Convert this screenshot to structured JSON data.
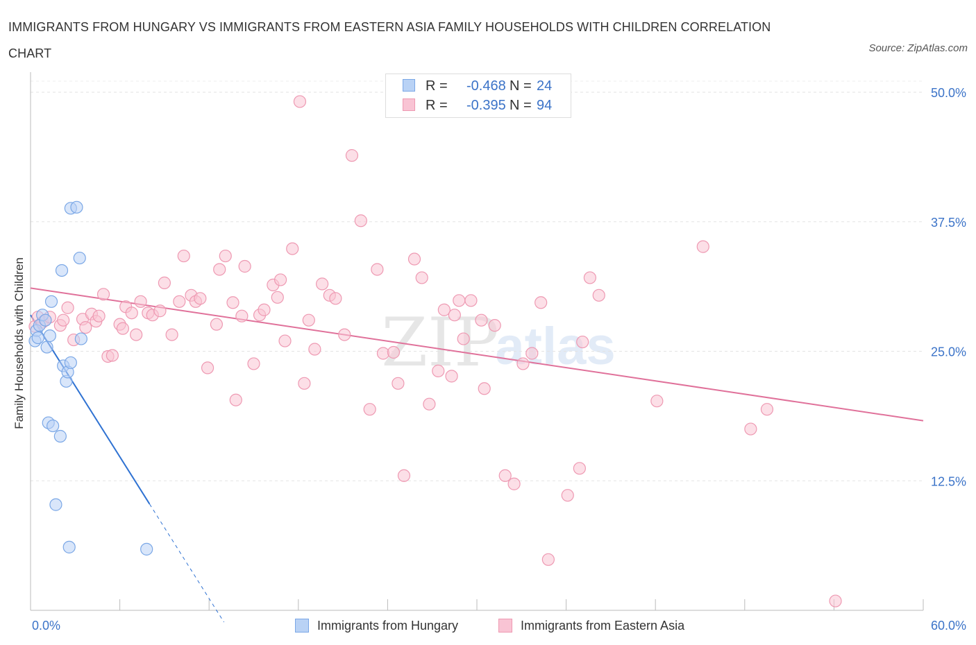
{
  "header": {
    "title": "IMMIGRANTS FROM HUNGARY VS IMMIGRANTS FROM EASTERN ASIA FAMILY HOUSEHOLDS WITH CHILDREN CORRELATION CHART",
    "source": "Source: ZipAtlas.com"
  },
  "legend": {
    "r_label": "R =",
    "n_label": "N =",
    "rows": [
      {
        "r": "-0.468",
        "n": "24",
        "fill": "#b9d2f5",
        "stroke": "#7aa7e6"
      },
      {
        "r": "-0.395",
        "n": "94",
        "fill": "#f9c4d4",
        "stroke": "#ee99b2"
      }
    ]
  },
  "bottom_legend": [
    {
      "label": "Immigrants from Hungary",
      "fill": "#b9d2f5",
      "stroke": "#7aa7e6"
    },
    {
      "label": "Immigrants from Eastern Asia",
      "fill": "#f9c4d4",
      "stroke": "#ee99b2"
    }
  ],
  "watermark": {
    "zip": "ZIP",
    "atlas": "atlas"
  },
  "chart_data": {
    "type": "scatter",
    "title": "IMMIGRANTS FROM HUNGARY VS IMMIGRANTS FROM EASTERN ASIA FAMILY HOUSEHOLDS WITH CHILDREN CORRELATION CHART",
    "xlabel": "",
    "ylabel": "Family Households with Children",
    "xlim": [
      0,
      60
    ],
    "ylim": [
      0,
      50
    ],
    "x_tick_labels": [
      "0.0%",
      "60.0%"
    ],
    "y_ticks": [
      12.5,
      25.0,
      37.5,
      50.0
    ],
    "y_tick_labels": [
      "12.5%",
      "25.0%",
      "37.5%",
      "50.0%"
    ],
    "grid": true,
    "legend_position": "top-center",
    "series": [
      {
        "name": "Immigrants from Hungary",
        "color": "#7aa7e6",
        "fill": "#b9d2f5",
        "line_color": "#2f72d2",
        "trend": {
          "x0": 0,
          "y0": 28.5,
          "x_solid_end": 8,
          "x_dash_end": 13
        },
        "points": [
          [
            0.3,
            26.0
          ],
          [
            0.4,
            27.0
          ],
          [
            0.5,
            26.3
          ],
          [
            0.6,
            27.5
          ],
          [
            0.8,
            28.5
          ],
          [
            1.0,
            28.0
          ],
          [
            1.1,
            25.4
          ],
          [
            1.2,
            18.1
          ],
          [
            1.3,
            26.5
          ],
          [
            1.4,
            29.8
          ],
          [
            1.5,
            17.8
          ],
          [
            1.7,
            10.2
          ],
          [
            2.0,
            16.8
          ],
          [
            2.1,
            32.8
          ],
          [
            2.2,
            23.6
          ],
          [
            2.4,
            22.1
          ],
          [
            2.5,
            23.0
          ],
          [
            2.6,
            6.1
          ],
          [
            2.7,
            23.9
          ],
          [
            2.7,
            38.8
          ],
          [
            3.1,
            38.9
          ],
          [
            3.3,
            34.0
          ],
          [
            3.4,
            26.2
          ],
          [
            7.8,
            5.9
          ]
        ]
      },
      {
        "name": "Immigrants from Eastern Asia",
        "color": "#ee99b2",
        "fill": "#f9c4d4",
        "line_color": "#e0719a",
        "trend": {
          "x0": 0,
          "y0": 31.1,
          "x1": 60,
          "y1": 18.3
        },
        "points": [
          [
            0.3,
            27.4
          ],
          [
            0.5,
            28.3
          ],
          [
            0.8,
            27.8
          ],
          [
            1.0,
            28.0
          ],
          [
            1.3,
            28.3
          ],
          [
            2.0,
            27.5
          ],
          [
            2.2,
            28.0
          ],
          [
            2.5,
            29.2
          ],
          [
            2.9,
            26.1
          ],
          [
            3.5,
            28.1
          ],
          [
            3.7,
            27.3
          ],
          [
            4.1,
            28.6
          ],
          [
            4.4,
            27.9
          ],
          [
            4.6,
            28.4
          ],
          [
            4.9,
            30.5
          ],
          [
            5.2,
            24.5
          ],
          [
            5.5,
            24.6
          ],
          [
            6.0,
            27.6
          ],
          [
            6.2,
            27.2
          ],
          [
            6.4,
            29.3
          ],
          [
            6.8,
            28.7
          ],
          [
            7.1,
            26.6
          ],
          [
            7.4,
            29.8
          ],
          [
            7.9,
            28.7
          ],
          [
            8.2,
            28.5
          ],
          [
            8.7,
            28.9
          ],
          [
            9.0,
            31.6
          ],
          [
            9.5,
            26.6
          ],
          [
            10.0,
            29.8
          ],
          [
            10.3,
            34.2
          ],
          [
            10.8,
            30.4
          ],
          [
            11.1,
            29.8
          ],
          [
            11.4,
            30.1
          ],
          [
            11.9,
            23.4
          ],
          [
            12.5,
            27.6
          ],
          [
            12.7,
            32.9
          ],
          [
            13.1,
            34.2
          ],
          [
            13.6,
            29.7
          ],
          [
            13.8,
            20.3
          ],
          [
            14.2,
            28.4
          ],
          [
            14.4,
            33.2
          ],
          [
            15.0,
            23.8
          ],
          [
            15.4,
            28.5
          ],
          [
            15.7,
            29.0
          ],
          [
            16.3,
            31.4
          ],
          [
            16.6,
            30.2
          ],
          [
            16.8,
            31.9
          ],
          [
            17.1,
            26.0
          ],
          [
            17.6,
            34.9
          ],
          [
            18.4,
            21.9
          ],
          [
            18.7,
            28.0
          ],
          [
            19.1,
            25.2
          ],
          [
            19.6,
            31.5
          ],
          [
            20.1,
            30.4
          ],
          [
            20.5,
            30.1
          ],
          [
            21.1,
            26.6
          ],
          [
            21.6,
            43.9
          ],
          [
            22.2,
            37.6
          ],
          [
            22.8,
            19.4
          ],
          [
            23.3,
            32.9
          ],
          [
            23.7,
            24.8
          ],
          [
            24.4,
            24.9
          ],
          [
            24.7,
            21.9
          ],
          [
            25.1,
            13.0
          ],
          [
            25.8,
            33.9
          ],
          [
            26.3,
            32.1
          ],
          [
            26.8,
            19.9
          ],
          [
            27.4,
            23.1
          ],
          [
            27.8,
            29.0
          ],
          [
            28.3,
            22.6
          ],
          [
            28.8,
            29.9
          ],
          [
            29.1,
            26.2
          ],
          [
            29.6,
            29.9
          ],
          [
            30.3,
            28.0
          ],
          [
            30.5,
            21.4
          ],
          [
            31.2,
            27.5
          ],
          [
            31.9,
            13.0
          ],
          [
            32.5,
            12.2
          ],
          [
            33.1,
            23.8
          ],
          [
            33.7,
            24.8
          ],
          [
            34.3,
            29.7
          ],
          [
            34.8,
            4.9
          ],
          [
            36.1,
            11.1
          ],
          [
            36.9,
            13.7
          ],
          [
            37.1,
            25.9
          ],
          [
            37.6,
            32.1
          ],
          [
            38.2,
            30.4
          ],
          [
            42.1,
            20.2
          ],
          [
            45.2,
            35.1
          ],
          [
            48.4,
            17.5
          ],
          [
            49.5,
            19.4
          ],
          [
            54.1,
            0.9
          ],
          [
            18.1,
            49.1
          ],
          [
            28.5,
            28.5
          ]
        ]
      }
    ]
  }
}
